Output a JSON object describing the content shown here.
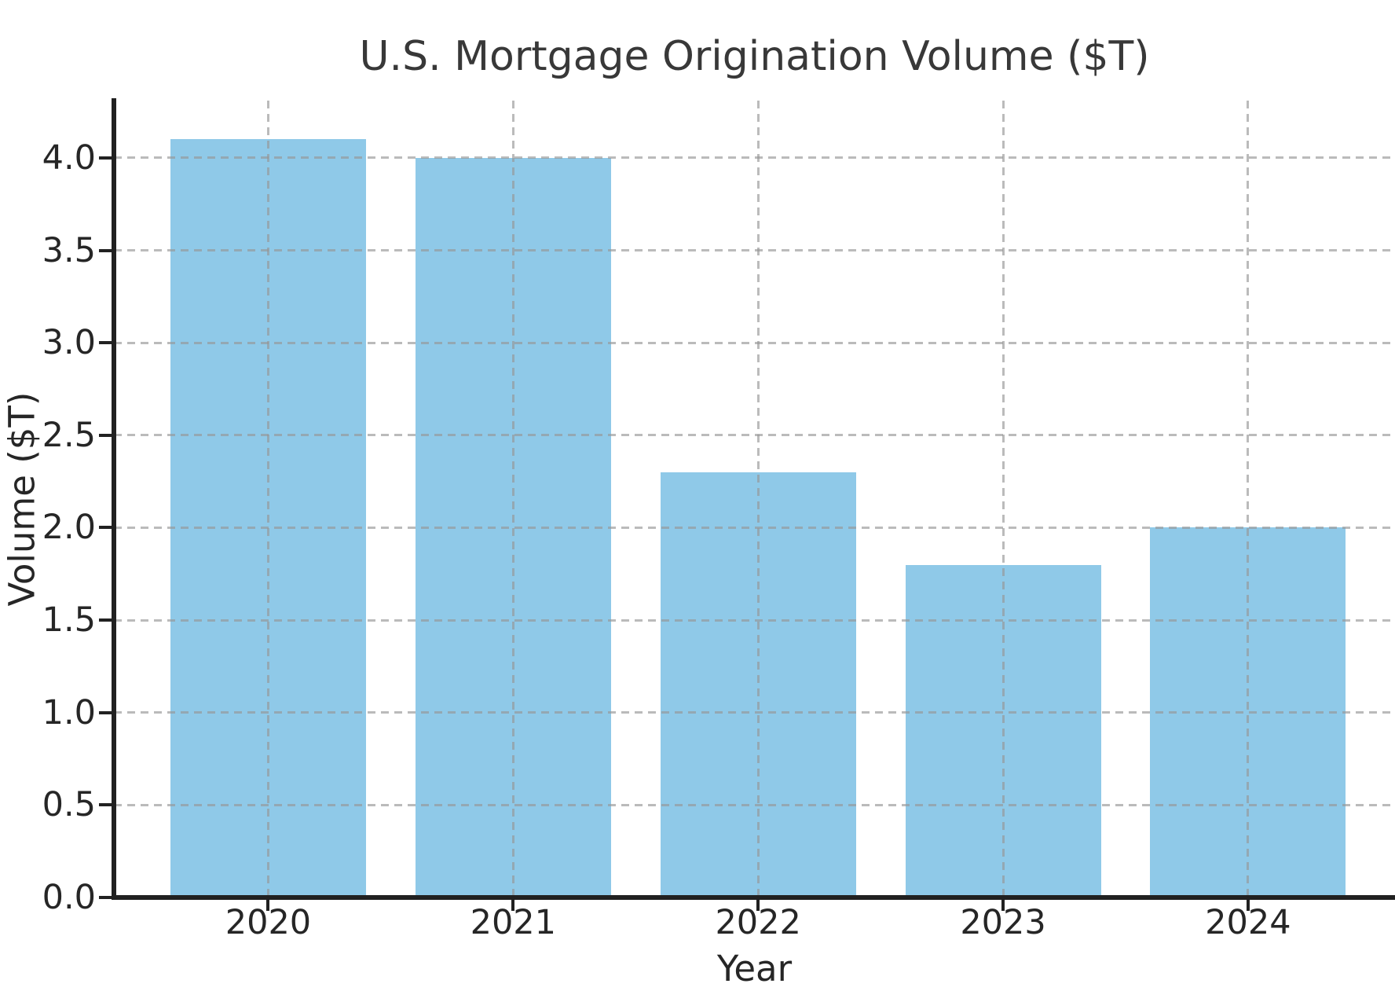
{
  "chart_data": {
    "type": "bar",
    "title": "U.S. Mortgage Origination Volume ($T)",
    "xlabel": "Year",
    "ylabel": "Volume ($T)",
    "categories": [
      "2020",
      "2021",
      "2022",
      "2023",
      "2024"
    ],
    "values": [
      4.1,
      4.0,
      2.3,
      1.8,
      2.0
    ],
    "ylim": [
      0,
      4.31
    ],
    "yticks": [
      0.0,
      0.5,
      1.0,
      1.5,
      2.0,
      2.5,
      3.0,
      3.5,
      4.0
    ],
    "ytick_labels": [
      "0.0",
      "0.5",
      "1.0",
      "1.5",
      "2.0",
      "2.5",
      "3.0",
      "3.5",
      "4.0"
    ],
    "grid": true,
    "grid_style": "dashed",
    "legend": "none",
    "bar_width_fraction": 0.8,
    "colors": {
      "bar": "#8FC9E8",
      "grid": "#969696",
      "axis": "#212121",
      "tick_text": "#262626",
      "title_text": "#383838",
      "background": "#FFFFFF"
    }
  }
}
